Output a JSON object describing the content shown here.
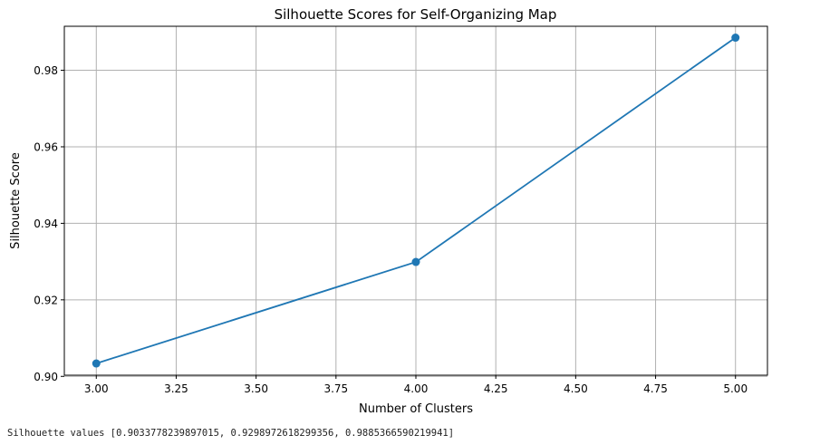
{
  "chart_data": {
    "type": "line",
    "title": "Silhouette Scores for Self-Organizing Map",
    "xlabel": "Number of Clusters",
    "ylabel": "Silhouette Score",
    "x": [
      3,
      4,
      5
    ],
    "series": [
      {
        "values": [
          0.9033778239897015,
          0.9298972618299356,
          0.9885366590219941
        ],
        "color": "#1f77b4",
        "marker": "circle"
      }
    ],
    "xlim": [
      2.9,
      5.1
    ],
    "ylim": [
      0.9003,
      0.9915
    ],
    "xticks": [
      "3.00",
      "3.25",
      "3.50",
      "3.75",
      "4.00",
      "4.25",
      "4.50",
      "4.75",
      "5.00"
    ],
    "yticks": [
      "0.90",
      "0.92",
      "0.94",
      "0.96",
      "0.98"
    ],
    "grid": true
  },
  "console": {
    "text": "Silhouette values [0.9033778239897015, 0.9298972618299356, 0.9885366590219941]"
  }
}
